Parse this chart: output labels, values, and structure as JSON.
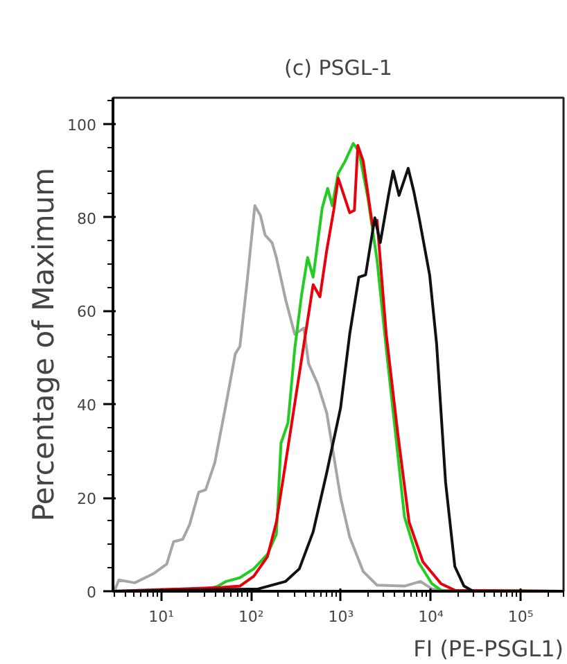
{
  "chart_data": {
    "type": "line",
    "title": "(c) PSGL-1",
    "xlabel": "FI (PE-PSGL1)",
    "ylabel": "Percentage of Maximum",
    "log": "x",
    "grid": false,
    "xlim": [
      2.9,
      300000
    ],
    "ylim": [
      0,
      105.6
    ],
    "xticks": [
      {
        "value": 10,
        "label": "10¹"
      },
      {
        "value": 100,
        "label": "10²"
      },
      {
        "value": 1000,
        "label": "10³"
      },
      {
        "value": 10000,
        "label": "10⁴"
      },
      {
        "value": 100000,
        "label": "10⁵"
      }
    ],
    "yticks": [
      0,
      20,
      40,
      60,
      80,
      100
    ],
    "series": [
      {
        "color": "#a6a6a6",
        "x": [
          3.0,
          3.37,
          5.07,
          8.09,
          11.5,
          13.7,
          17.3,
          20.7,
          26.1,
          31.2,
          39.4,
          52.8,
          66.7,
          75.0,
          89.5,
          110,
          127,
          143,
          171,
          191,
          242,
          306,
          387,
          436,
          550,
          695,
          989,
          1250,
          1770,
          2520,
          5090,
          7670,
          10300,
          16400,
          274000
        ],
        "values": [
          0,
          2.4,
          1.8,
          3.7,
          5.8,
          10.6,
          11.1,
          14.3,
          21.2,
          21.7,
          27.5,
          40.2,
          50.8,
          52.4,
          65.6,
          82.5,
          80.4,
          76.2,
          74.6,
          71.4,
          62.4,
          55,
          56.3,
          48.7,
          44.4,
          38.1,
          20.1,
          11.6,
          4.2,
          1.3,
          1.1,
          2.1,
          0.5,
          0,
          0
        ]
      },
      {
        "color": "#22cc22",
        "x": [
          3.0,
          26.1,
          41.8,
          52.8,
          75.0,
          107,
          152,
          191,
          215,
          257,
          306,
          365,
          425,
          490,
          618,
          711,
          800,
          931,
          1110,
          1370,
          1580,
          1995,
          2520,
          3190,
          4040,
          5090,
          7240,
          10300,
          13000,
          274000
        ],
        "values": [
          0,
          0,
          1,
          2.1,
          2.9,
          4.8,
          7.9,
          12.2,
          31.7,
          36,
          51.9,
          63.5,
          71.4,
          67.2,
          82,
          86.2,
          82.5,
          89.4,
          92,
          95.8,
          94.2,
          84.1,
          70.9,
          51.9,
          33.9,
          15.9,
          6.3,
          1.6,
          0.2,
          0
        ]
      },
      {
        "color": "#e8000b",
        "x": [
          3.0,
          47.0,
          75.0,
          107,
          152,
          191,
          242,
          306,
          387,
          490,
          583,
          695,
          830,
          931,
          1250,
          1410,
          1540,
          1770,
          2240,
          2520,
          3190,
          4280,
          5730,
          8150,
          13000,
          18500,
          274000
        ],
        "values": [
          0,
          0.8,
          1.1,
          3.2,
          7.4,
          14.8,
          27.5,
          40.2,
          52.9,
          65.6,
          63,
          73,
          81.5,
          88.4,
          81,
          81.5,
          95.4,
          92,
          78.3,
          79.4,
          55,
          33.9,
          14.8,
          6.3,
          1.6,
          0.2,
          0
        ]
      },
      {
        "color": "#111111",
        "x": [
          3.0,
          120,
          242,
          344,
          490,
          695,
          989,
          1250,
          1580,
          1880,
          2380,
          2740,
          3380,
          3800,
          4430,
          5600,
          6440,
          7410,
          9700,
          11600,
          14600,
          18500,
          23400,
          29600,
          274000
        ],
        "values": [
          0,
          0.5,
          2.1,
          4.8,
          12.7,
          25.4,
          39.2,
          55,
          67.2,
          67.7,
          79.9,
          74.6,
          84.7,
          89.9,
          84.7,
          90.5,
          85.7,
          79.9,
          67.7,
          52.9,
          23.3,
          5.3,
          1.1,
          0,
          0
        ]
      }
    ]
  }
}
